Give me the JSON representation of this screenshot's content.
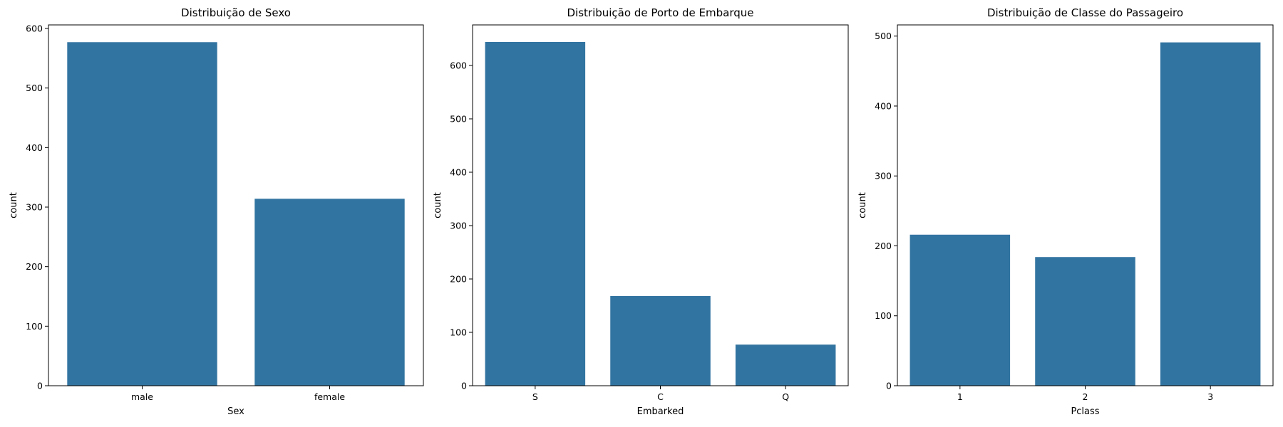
{
  "colors": {
    "bar": "#3274a1",
    "axis": "#000000",
    "background": "#ffffff"
  },
  "chart_data": [
    {
      "type": "bar",
      "title": "Distribuição de Sexo",
      "xlabel": "Sex",
      "ylabel": "count",
      "categories": [
        "male",
        "female"
      ],
      "values": [
        577,
        314
      ],
      "ylim": [
        0,
        606
      ],
      "yticks": [
        0,
        100,
        200,
        300,
        400,
        500,
        600
      ],
      "grid": false,
      "legend": "none"
    },
    {
      "type": "bar",
      "title": "Distribuição de Porto de Embarque",
      "xlabel": "Embarked",
      "ylabel": "count",
      "categories": [
        "S",
        "C",
        "Q"
      ],
      "values": [
        644,
        168,
        77
      ],
      "ylim": [
        0,
        676
      ],
      "yticks": [
        0,
        100,
        200,
        300,
        400,
        500,
        600
      ],
      "grid": false,
      "legend": "none"
    },
    {
      "type": "bar",
      "title": "Distribuição de Classe do Passageiro",
      "xlabel": "Pclass",
      "ylabel": "count",
      "categories": [
        "1",
        "2",
        "3"
      ],
      "values": [
        216,
        184,
        491
      ],
      "ylim": [
        0,
        516
      ],
      "yticks": [
        0,
        100,
        200,
        300,
        400,
        500
      ],
      "grid": false,
      "legend": "none"
    }
  ]
}
